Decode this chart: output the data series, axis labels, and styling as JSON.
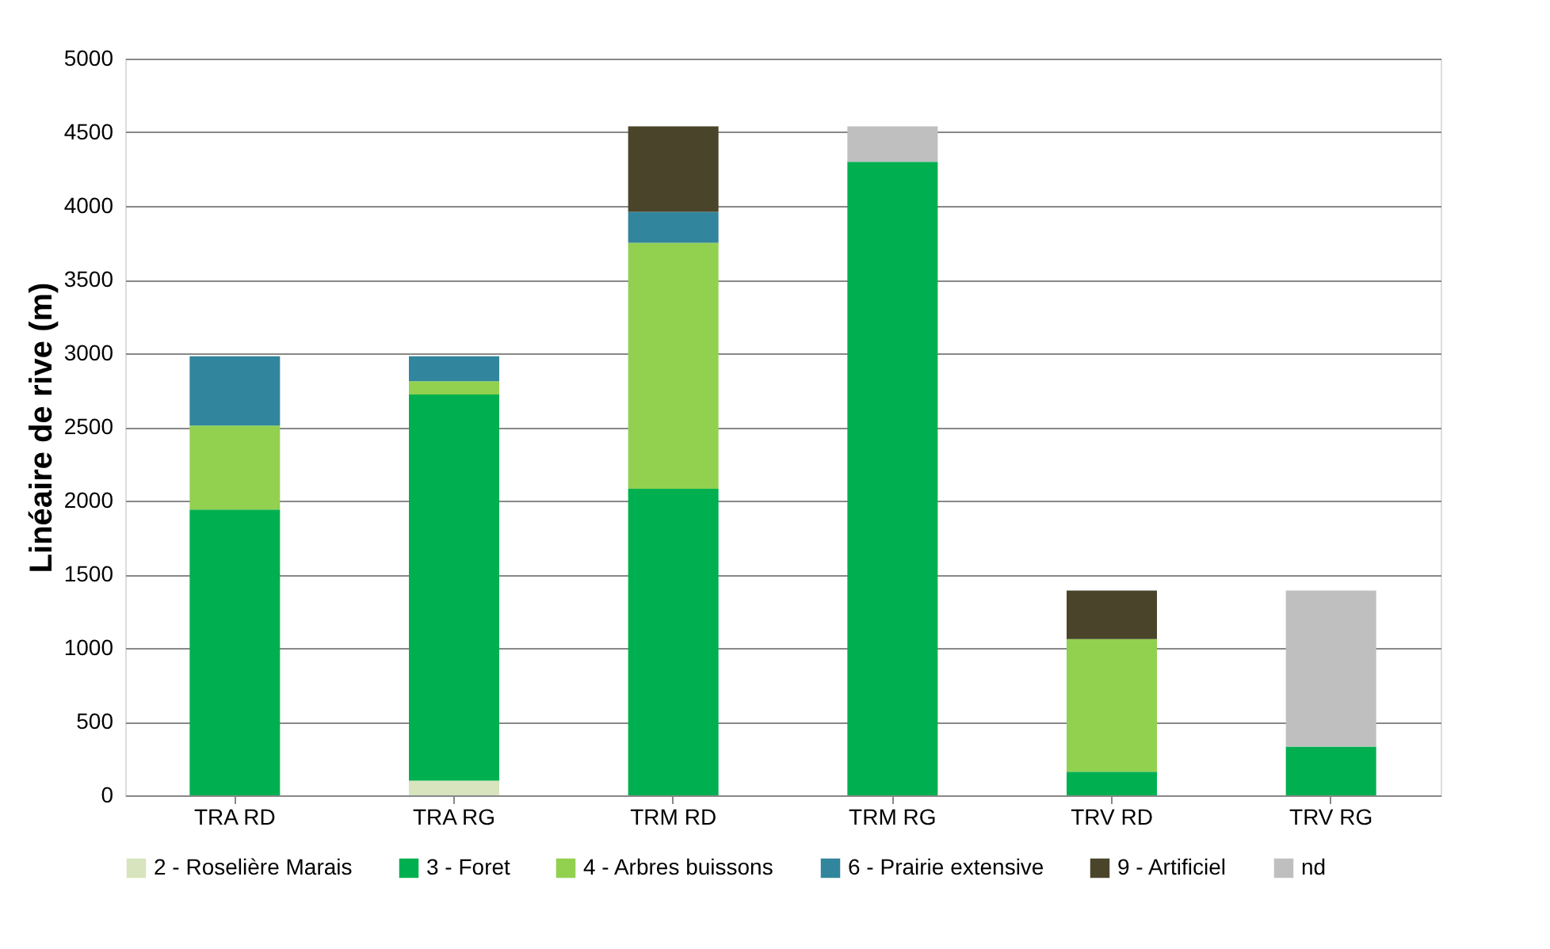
{
  "chart_data": {
    "type": "bar",
    "stacked": true,
    "ylabel": "Linéaire de rive (m)",
    "categories": [
      "TRA RD",
      "TRA RG",
      "TRM RD",
      "TRM RG",
      "TRV RD",
      "TRV RG"
    ],
    "series": [
      {
        "name": "2 - Roselière Marais",
        "color": "#d7e4bd",
        "values": [
          null,
          100,
          null,
          null,
          null,
          null
        ]
      },
      {
        "name": "3 - Foret",
        "color": "#00b050",
        "values": [
          1940,
          2620,
          2080,
          4300,
          160,
          330
        ]
      },
      {
        "name": "4 - Arbres buissons",
        "color": "#92d050",
        "values": [
          570,
          90,
          1670,
          null,
          900,
          null
        ]
      },
      {
        "name": "6 - Prairie extensive",
        "color": "#31859c",
        "values": [
          470,
          170,
          210,
          null,
          null,
          null
        ]
      },
      {
        "name": "9 - Artificiel",
        "color": "#4a452a",
        "values": [
          null,
          null,
          580,
          null,
          330,
          null
        ]
      },
      {
        "name": "nd",
        "color": "#bfbfbf",
        "values": [
          null,
          null,
          null,
          240,
          null,
          1060
        ]
      }
    ],
    "ylim": [
      0,
      5000
    ],
    "yticks": [
      0,
      500,
      1000,
      1500,
      2000,
      2500,
      3000,
      3500,
      4000,
      4500,
      5000
    ],
    "grid": "y",
    "legend": "bottom"
  }
}
